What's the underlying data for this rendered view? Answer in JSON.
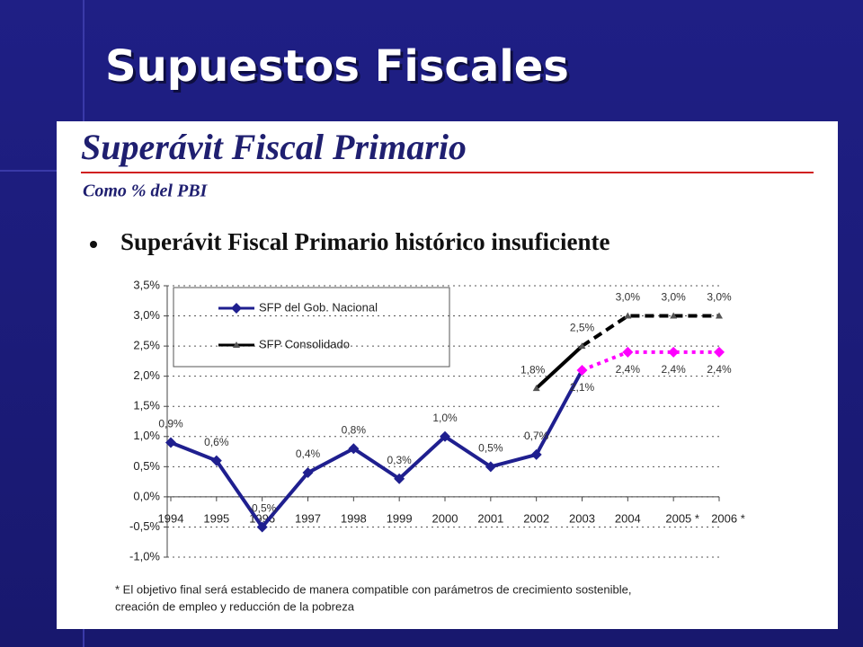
{
  "slide_title": "Supuestos Fiscales",
  "chart_data": {
    "type": "line",
    "title": "Superávit Fiscal Primario",
    "subtitle": "Como % del PBI",
    "note": "Superávit Fiscal Primario histórico insuficiente",
    "footnote": [
      "* El objetivo final será establecido de manera compatible con parámetros de crecimiento sostenible,",
      "creación  de empleo y reducción de la pobreza"
    ],
    "categories": [
      "1994",
      "1995",
      "1996",
      "1997",
      "1998",
      "1999",
      "2000",
      "2001",
      "2002",
      "2003",
      "2004",
      "2005 *",
      "2006 *"
    ],
    "forecast_from": "2003",
    "series": [
      {
        "name": "SFP del Gob. Nacional",
        "color": "#1f1f8f",
        "forecast_color": "#ff00ff",
        "marker": "diamond",
        "values": [
          0.9,
          0.6,
          -0.5,
          0.4,
          0.8,
          0.3,
          1.0,
          0.5,
          0.7,
          2.1,
          2.4,
          2.4,
          2.4
        ],
        "value_labels": [
          "0,9%",
          "0,6%",
          "-0,5%",
          "0,4%",
          "0,8%",
          "0,3%",
          "1,0%",
          "0,5%",
          "0,7%",
          "2,1%",
          "2,4%",
          "2,4%",
          "2,4%"
        ]
      },
      {
        "name": "SFP Consolidado",
        "color": "#000000",
        "forecast_color": "#000000",
        "marker": "triangle",
        "values": [
          null,
          null,
          null,
          null,
          null,
          null,
          null,
          null,
          1.8,
          2.5,
          3.0,
          3.0,
          3.0
        ],
        "value_labels": [
          null,
          null,
          null,
          null,
          null,
          null,
          null,
          null,
          "1,8%",
          "2,5%",
          "3,0%",
          "3,0%",
          "3,0%"
        ]
      }
    ],
    "ylim": [
      -1.0,
      3.5
    ],
    "yticks": [
      {
        "value": -1.0,
        "label": "-1,0%"
      },
      {
        "value": -0.5,
        "label": "-0,5%"
      },
      {
        "value": 0,
        "label": "0,0%"
      },
      {
        "value": 0.5,
        "label": "0,5%"
      },
      {
        "value": 1.0,
        "label": "1,0%"
      },
      {
        "value": 1.5,
        "label": "1,5%"
      },
      {
        "value": 2.0,
        "label": "2,0%"
      },
      {
        "value": 2.5,
        "label": "2,5%"
      },
      {
        "value": 3.0,
        "label": "3,0%"
      },
      {
        "value": 3.5,
        "label": "3,5%"
      }
    ],
    "grid": true
  }
}
